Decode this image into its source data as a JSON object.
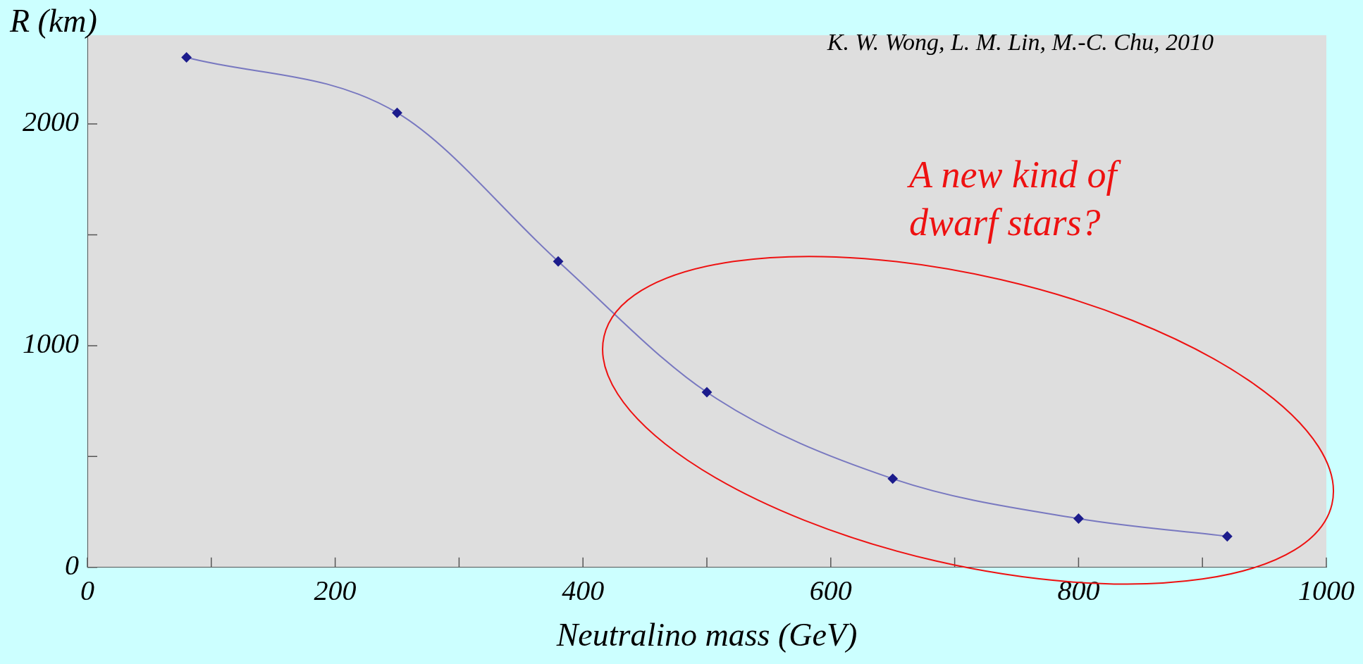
{
  "chart_data": {
    "type": "line",
    "xlabel": "Neutralino mass (GeV)",
    "ylabel": "R (km)",
    "x": [
      80,
      250,
      380,
      500,
      650,
      800,
      920
    ],
    "series": [
      {
        "color": "#7878c0",
        "values": [
          2300,
          2050,
          1380,
          790,
          400,
          220,
          140
        ]
      }
    ],
    "xlim": [
      0,
      1000
    ],
    "xticks": [
      0,
      {
        "value": 100,
        "label": null
      },
      200,
      {
        "value": 300,
        "label": null
      },
      400,
      {
        "value": 500,
        "label": null
      },
      600,
      {
        "value": 700,
        "label": null
      },
      800,
      {
        "value": 900,
        "label": null
      },
      1000
    ],
    "ylim": [
      0,
      2400
    ],
    "yticks": [
      0,
      {
        "value": 500,
        "label": null
      },
      1000,
      {
        "value": 1500,
        "label": null
      },
      2000
    ],
    "marker": "diamond",
    "grid": false,
    "legend": false,
    "annotations": [
      "K. W. Wong, L. M. Lin, M.-C. Chu, 2010",
      "A new kind of\ndwarf stars?"
    ]
  }
}
